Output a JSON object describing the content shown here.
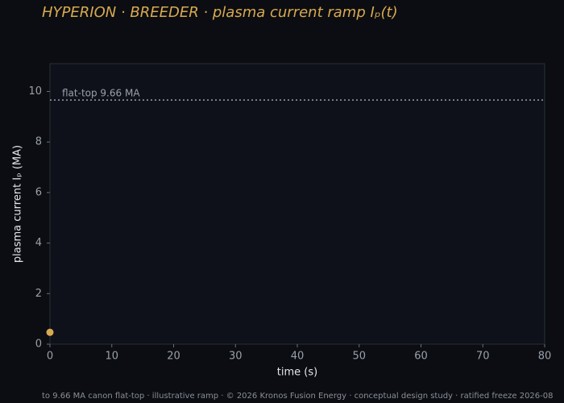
{
  "chart_data": {
    "type": "scatter",
    "title": "HYPERION · BREEDER  ·  plasma current ramp Iₚ(t)",
    "x_label": "time (s)",
    "y_label": "plasma current Iₚ (MA)",
    "series": [
      {
        "name": "Iₚ",
        "color": "#d9a94f",
        "x": [
          0
        ],
        "values": [
          0.47
        ]
      }
    ],
    "reference_line": {
      "value": 9.66,
      "label": "flat-top 9.66 MA",
      "color": "#9aa0aa"
    },
    "xlim": [
      0,
      80
    ],
    "xticks": [
      0,
      10,
      20,
      30,
      40,
      50,
      60,
      70,
      80
    ],
    "ylim": [
      0,
      11.1
    ],
    "yticks": [
      0,
      2,
      4,
      6,
      8,
      10
    ],
    "grid": false,
    "legend": false,
    "footer": "to 9.66 MA canon flat-top · illustrative ramp · © 2026 Kronos Fusion Energy · conceptual design study · ratified freeze 2026-08"
  }
}
